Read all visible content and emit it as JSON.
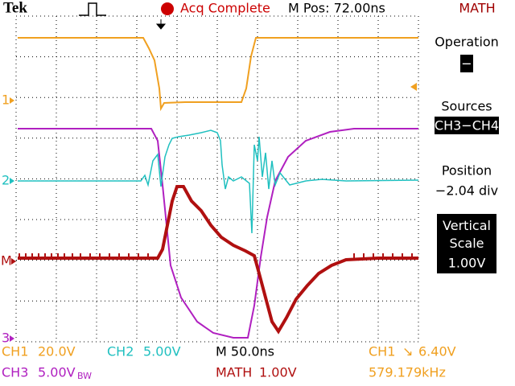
{
  "header": {
    "brand": "Tek",
    "status": "Acq Complete",
    "position": "M Pos: 72.00ns",
    "menu_title": "MATH"
  },
  "markers": {
    "ch1": "1",
    "ch2": "2",
    "math": "M",
    "ch3": "3"
  },
  "menu": [
    {
      "label": "Operation",
      "value": "−"
    },
    {
      "label": "Sources",
      "value": "CH3−CH4"
    },
    {
      "label": "Position",
      "value": "−2.04 div"
    },
    {
      "label": "Vertical Scale",
      "value": "1.00V"
    }
  ],
  "footer": {
    "ch1": {
      "name": "CH1",
      "scale": "20.0V"
    },
    "ch2": {
      "name": "CH2",
      "scale": "5.00V"
    },
    "time": "M 50.0ns",
    "trigger": {
      "name": "CH1",
      "symbol": "↘",
      "level": "6.40V"
    },
    "ch3": {
      "name": "CH3",
      "scale": "5.00V",
      "bw": "BW"
    },
    "math": {
      "name": "MATH",
      "scale": "1.00V"
    },
    "frequency": "579.179kHz"
  }
}
